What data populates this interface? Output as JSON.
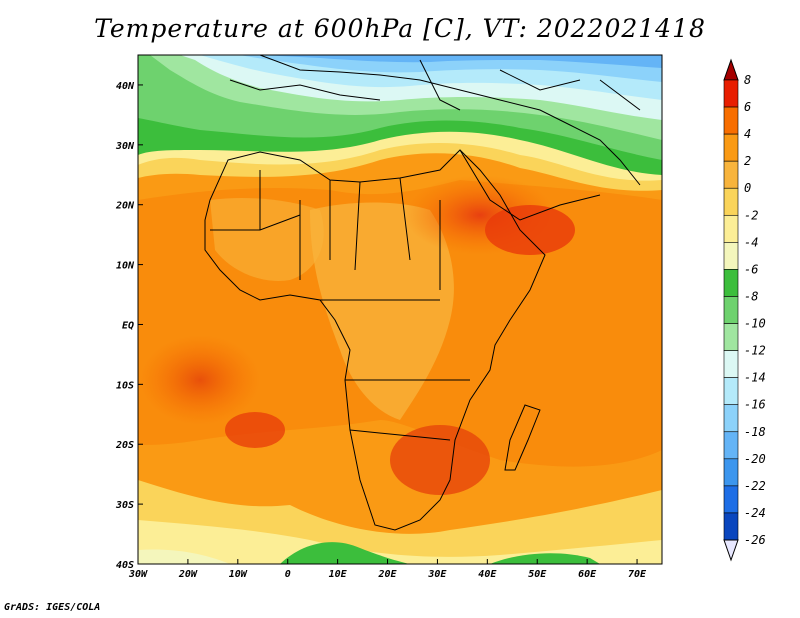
{
  "title": "Temperature at 600hPa [C], VT: 2022021418",
  "footer": "GrADS: IGES/COLA",
  "map": {
    "lon_range": [
      -30,
      75
    ],
    "lat_range": [
      -40,
      45
    ],
    "x_ticks": [
      "30W",
      "20W",
      "10W",
      "0",
      "10E",
      "20E",
      "30E",
      "40E",
      "50E",
      "60E",
      "70E"
    ],
    "y_ticks": [
      "40S",
      "30S",
      "20S",
      "10S",
      "EQ",
      "10N",
      "20N",
      "30N",
      "40N"
    ]
  },
  "colorbar": {
    "labels": [
      "8",
      "6",
      "4",
      "2",
      "0",
      "-2",
      "-4",
      "-6",
      "-8",
      "-10",
      "-12",
      "-14",
      "-16",
      "-18",
      "-20",
      "-22",
      "-24",
      "-26"
    ],
    "colors": [
      "#a50000",
      "#e81e00",
      "#f86e00",
      "#fa9a14",
      "#f8b43c",
      "#fad45a",
      "#fcee96",
      "#f4f6bc",
      "#3cbe3c",
      "#6ed26e",
      "#a0e6a0",
      "#dcf8f4",
      "#b4eafa",
      "#8cd2fa",
      "#64b4f6",
      "#3c96ee",
      "#1e6ee6",
      "#0a46be",
      "#00287d"
    ]
  }
}
